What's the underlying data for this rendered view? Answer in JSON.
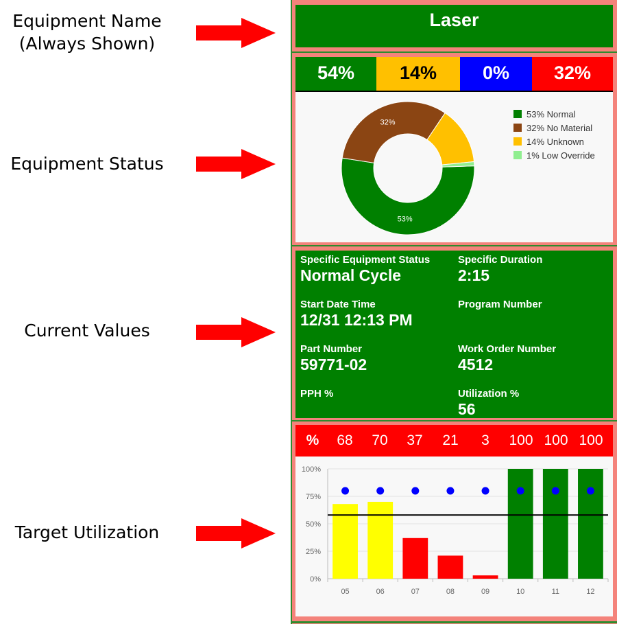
{
  "annotations": [
    {
      "label": "Equipment Name\n(Always Shown)"
    },
    {
      "label": "Equipment Status"
    },
    {
      "label": "Current Values"
    },
    {
      "label": "Target Utilization"
    }
  ],
  "equipment": {
    "name": "Laser"
  },
  "status_bar": [
    {
      "value": "54%",
      "color": "#008000",
      "text_color": "#ffffff"
    },
    {
      "value": "14%",
      "color": "#ffc000",
      "text_color": "#000000"
    },
    {
      "value": "0%",
      "color": "#0000ff",
      "text_color": "#ffffff"
    },
    {
      "value": "32%",
      "color": "#ff0000",
      "text_color": "#ffffff"
    }
  ],
  "chart_data": [
    {
      "type": "pie",
      "title": "",
      "slices": [
        {
          "label": "53% Normal",
          "value": 53,
          "color": "#008000",
          "data_label": "53%"
        },
        {
          "label": "32% No Material",
          "value": 32,
          "color": "#8b4513",
          "data_label": "32%"
        },
        {
          "label": "14% Unknown",
          "value": 14,
          "color": "#ffc000",
          "data_label": ""
        },
        {
          "label": "1% Low Override",
          "value": 1,
          "color": "#90ee90",
          "data_label": ""
        }
      ],
      "legend_position": "right"
    },
    {
      "type": "bar",
      "title": "",
      "categories": [
        "05",
        "06",
        "07",
        "08",
        "09",
        "10",
        "11",
        "12"
      ],
      "values": [
        68,
        70,
        37,
        21,
        3,
        100,
        100,
        100
      ],
      "bar_colors": [
        "#ffff00",
        "#ffff00",
        "#ff0000",
        "#ff0000",
        "#ff0000",
        "#008000",
        "#008000",
        "#008000"
      ],
      "target_points": [
        80,
        80,
        80,
        80,
        80,
        80,
        80,
        80
      ],
      "target_line": 58,
      "ylim": [
        0,
        100
      ],
      "yticks": [
        "0%",
        "25%",
        "50%",
        "75%",
        "100%"
      ],
      "xlabel": "",
      "ylabel": "",
      "grid": true
    }
  ],
  "current_values": [
    {
      "label": "Specific Equipment Status",
      "value": "Normal Cycle"
    },
    {
      "label": "Specific Duration",
      "value": "2:15"
    },
    {
      "label": "Start Date Time",
      "value": "12/31 12:13 PM"
    },
    {
      "label": "Program Number",
      "value": ""
    },
    {
      "label": "Part Number",
      "value": "59771-02"
    },
    {
      "label": "Work Order Number",
      "value": "4512"
    },
    {
      "label": "PPH %",
      "value": ""
    },
    {
      "label": "Utilization %",
      "value": "56"
    }
  ],
  "target_row": {
    "header": "%",
    "values": [
      "68",
      "70",
      "37",
      "21",
      "3",
      "100",
      "100",
      "100"
    ]
  },
  "colors": {
    "green": "#008000",
    "red": "#ff0000",
    "salmon": "#f4837b",
    "arrow": "#ff0000"
  }
}
